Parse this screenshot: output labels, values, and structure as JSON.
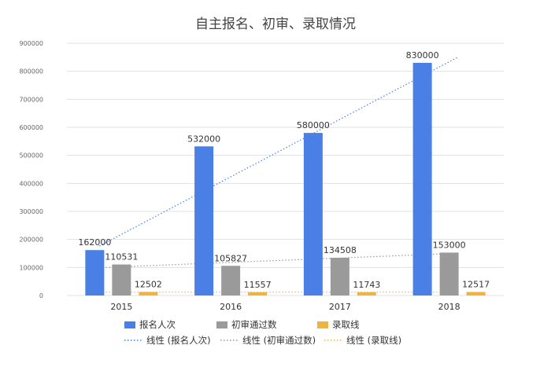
{
  "chart_data": {
    "type": "bar",
    "title": "自主报名、初审、录取情况",
    "categories": [
      "2015",
      "2016",
      "2017",
      "2018"
    ],
    "ylim": [
      0,
      900000
    ],
    "yticks": [
      0,
      100000,
      200000,
      300000,
      400000,
      500000,
      600000,
      700000,
      800000,
      900000
    ],
    "grid": true,
    "legend_position": "bottom",
    "series": [
      {
        "name": "报名人次",
        "color": "#4a7fe5",
        "values": [
          162000,
          532000,
          580000,
          830000
        ]
      },
      {
        "name": "初审通过数",
        "color": "#9a9a9a",
        "values": [
          110531,
          105827,
          134508,
          153000
        ]
      },
      {
        "name": "录取线",
        "color": "#f0b33b",
        "values": [
          12502,
          11557,
          11743,
          12517
        ]
      }
    ],
    "trendlines": [
      {
        "name": "线性 (报名人次)",
        "color": "#4a7fe5",
        "style": "dotted"
      },
      {
        "name": "线性 (初审通过数)",
        "color": "#9a9a9a",
        "style": "dotted"
      },
      {
        "name": "线性 (录取线)",
        "color": "#f0b33b",
        "style": "dotted"
      }
    ]
  }
}
